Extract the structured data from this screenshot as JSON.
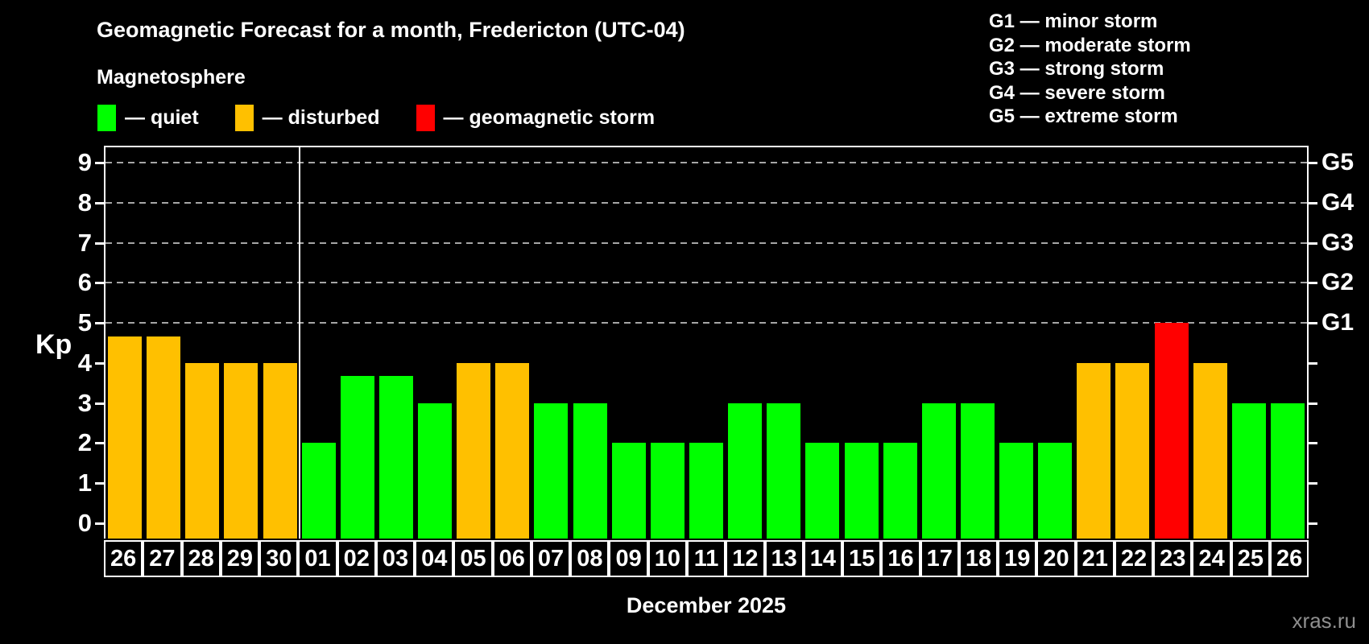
{
  "title": "Geomagnetic Forecast for a month, Fredericton (UTC-04)",
  "subtitle": "Magnetosphere",
  "watermark": "xras.ru",
  "colors": {
    "quiet": "#00ff00",
    "disturbed": "#ffc000",
    "storm": "#ff0000",
    "axis": "#ffffff",
    "grid": "#a6a6a6",
    "text": "#ffffff",
    "watermark": "#8f8f8f",
    "background": "#000000"
  },
  "legend": {
    "items": [
      {
        "status": "quiet",
        "label": "— quiet"
      },
      {
        "status": "disturbed",
        "label": "— disturbed"
      },
      {
        "status": "storm",
        "label": "— geomagnetic storm"
      }
    ]
  },
  "storm_scale": {
    "items": [
      "G1 — minor storm",
      "G2 — moderate storm",
      "G3 — strong storm",
      "G4 — severe storm",
      "G5 — extreme storm"
    ]
  },
  "chart_data": {
    "type": "bar",
    "title": "Geomagnetic Forecast for a month, Fredericton (UTC-04)",
    "ylabel": "Kp",
    "xlabel": "December 2025",
    "y_ticks": [
      0,
      1,
      2,
      3,
      4,
      5,
      6,
      7,
      8,
      9
    ],
    "ylim": [
      -0.4,
      9.4
    ],
    "grid_levels": [
      5,
      6,
      7,
      8,
      9
    ],
    "right_axis": [
      {
        "kp": 5,
        "label": "G1"
      },
      {
        "kp": 6,
        "label": "G2"
      },
      {
        "kp": 7,
        "label": "G3"
      },
      {
        "kp": 8,
        "label": "G4"
      },
      {
        "kp": 9,
        "label": "G5"
      }
    ],
    "month_separator_after_index": 4,
    "bars": [
      {
        "day": "26",
        "kp": 4.67,
        "status": "disturbed"
      },
      {
        "day": "27",
        "kp": 4.67,
        "status": "disturbed"
      },
      {
        "day": "28",
        "kp": 4.0,
        "status": "disturbed"
      },
      {
        "day": "29",
        "kp": 4.0,
        "status": "disturbed"
      },
      {
        "day": "30",
        "kp": 4.0,
        "status": "disturbed"
      },
      {
        "day": "01",
        "kp": 2.0,
        "status": "quiet"
      },
      {
        "day": "02",
        "kp": 3.67,
        "status": "quiet"
      },
      {
        "day": "03",
        "kp": 3.67,
        "status": "quiet"
      },
      {
        "day": "04",
        "kp": 3.0,
        "status": "quiet"
      },
      {
        "day": "05",
        "kp": 4.0,
        "status": "disturbed"
      },
      {
        "day": "06",
        "kp": 4.0,
        "status": "disturbed"
      },
      {
        "day": "07",
        "kp": 3.0,
        "status": "quiet"
      },
      {
        "day": "08",
        "kp": 3.0,
        "status": "quiet"
      },
      {
        "day": "09",
        "kp": 2.0,
        "status": "quiet"
      },
      {
        "day": "10",
        "kp": 2.0,
        "status": "quiet"
      },
      {
        "day": "11",
        "kp": 2.0,
        "status": "quiet"
      },
      {
        "day": "12",
        "kp": 3.0,
        "status": "quiet"
      },
      {
        "day": "13",
        "kp": 3.0,
        "status": "quiet"
      },
      {
        "day": "14",
        "kp": 2.0,
        "status": "quiet"
      },
      {
        "day": "15",
        "kp": 2.0,
        "status": "quiet"
      },
      {
        "day": "16",
        "kp": 2.0,
        "status": "quiet"
      },
      {
        "day": "17",
        "kp": 3.0,
        "status": "quiet"
      },
      {
        "day": "18",
        "kp": 3.0,
        "status": "quiet"
      },
      {
        "day": "19",
        "kp": 2.0,
        "status": "quiet"
      },
      {
        "day": "20",
        "kp": 2.0,
        "status": "quiet"
      },
      {
        "day": "21",
        "kp": 4.0,
        "status": "disturbed"
      },
      {
        "day": "22",
        "kp": 4.0,
        "status": "disturbed"
      },
      {
        "day": "23",
        "kp": 5.0,
        "status": "storm"
      },
      {
        "day": "24",
        "kp": 4.0,
        "status": "disturbed"
      },
      {
        "day": "25",
        "kp": 3.0,
        "status": "quiet"
      },
      {
        "day": "26",
        "kp": 3.0,
        "status": "quiet"
      }
    ]
  }
}
